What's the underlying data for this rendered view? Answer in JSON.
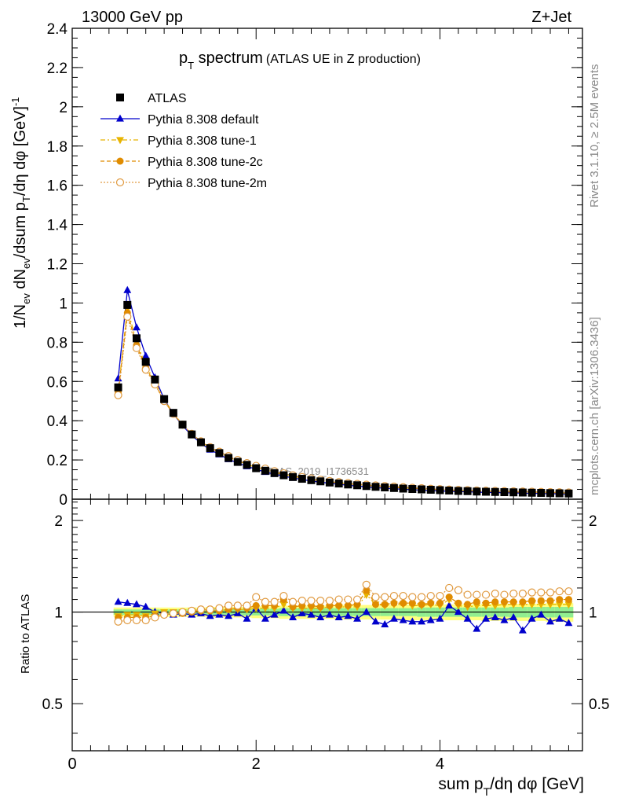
{
  "header": {
    "energy_label": "13000 GeV pp",
    "process_label": "Z+Jet"
  },
  "side_labels": {
    "rivet": "Rivet 3.1.10, ≥ 2.5M events",
    "mcplots": "mcplots.cern.ch [arXiv:1306.3436]"
  },
  "watermark": "ATLAS_2019_I1736531",
  "chart_data": [
    {
      "type": "line",
      "title_main": "p",
      "title_sub": "T",
      "title_rest": " spectrum",
      "title_note": "(ATLAS UE in Z production)",
      "ylabel": "1/N_ev dN_ev/dsum p_T/dη dφ [GeV]^-1",
      "xlim": [
        0,
        5.55
      ],
      "ylim": [
        0,
        2.4
      ],
      "y_ticks": [
        "0",
        "0.2",
        "0.4",
        "0.6",
        "0.8",
        "1",
        "1.2",
        "1.4",
        "1.6",
        "1.8",
        "2",
        "2.2",
        "2.4"
      ],
      "grid": false,
      "legend_position": "top-left",
      "x": [
        0.5,
        0.6,
        0.7,
        0.8,
        0.9,
        1.0,
        1.1,
        1.2,
        1.3,
        1.4,
        1.5,
        1.6,
        1.7,
        1.8,
        1.9,
        2.0,
        2.1,
        2.2,
        2.3,
        2.4,
        2.5,
        2.6,
        2.7,
        2.8,
        2.9,
        3.0,
        3.1,
        3.2,
        3.3,
        3.4,
        3.5,
        3.6,
        3.7,
        3.8,
        3.9,
        4.0,
        4.1,
        4.2,
        4.3,
        4.4,
        4.5,
        4.6,
        4.7,
        4.8,
        4.9,
        5.0,
        5.1,
        5.2,
        5.3,
        5.4
      ],
      "series": [
        {
          "name": "ATLAS",
          "color": "#000000",
          "marker": "square",
          "values": [
            0.57,
            0.99,
            0.82,
            0.7,
            0.61,
            0.51,
            0.44,
            0.38,
            0.33,
            0.29,
            0.26,
            0.235,
            0.21,
            0.19,
            0.175,
            0.158,
            0.145,
            0.133,
            0.122,
            0.113,
            0.104,
            0.097,
            0.091,
            0.085,
            0.08,
            0.075,
            0.071,
            0.067,
            0.063,
            0.06,
            0.057,
            0.054,
            0.052,
            0.05,
            0.048,
            0.046,
            0.044,
            0.042,
            0.041,
            0.039,
            0.038,
            0.037,
            0.036,
            0.035,
            0.034,
            0.033,
            0.032,
            0.031,
            0.03,
            0.029
          ]
        },
        {
          "name": "Pythia 8.308 default",
          "color": "#0000cc",
          "marker": "triangle-up",
          "values": [
            0.615,
            1.065,
            0.875,
            0.73,
            0.62,
            0.51,
            0.435,
            0.375,
            0.325,
            0.285,
            0.252,
            0.228,
            0.203,
            0.185,
            0.167,
            0.153,
            0.138,
            0.128,
            0.117,
            0.108,
            0.1,
            0.093,
            0.087,
            0.081,
            0.076,
            0.071,
            0.067,
            0.063,
            0.059,
            0.056,
            0.053,
            0.051,
            0.048,
            0.046,
            0.044,
            0.042,
            0.041,
            0.039,
            0.038,
            0.036,
            0.035,
            0.034,
            0.033,
            0.032,
            0.031,
            0.03,
            0.029,
            0.028,
            0.027,
            0.026
          ]
        },
        {
          "name": "Pythia 8.308 tune-1",
          "color": "#e8b400",
          "marker": "triangle-down",
          "values": [
            0.55,
            0.97,
            0.8,
            0.68,
            0.6,
            0.505,
            0.44,
            0.38,
            0.332,
            0.292,
            0.262,
            0.238,
            0.214,
            0.194,
            0.178,
            0.162,
            0.149,
            0.137,
            0.126,
            0.116,
            0.107,
            0.1,
            0.094,
            0.088,
            0.083,
            0.078,
            0.074,
            0.07,
            0.066,
            0.063,
            0.06,
            0.057,
            0.055,
            0.052,
            0.05,
            0.048,
            0.046,
            0.044,
            0.043,
            0.041,
            0.04,
            0.039,
            0.038,
            0.037,
            0.036,
            0.035,
            0.034,
            0.033,
            0.032,
            0.031
          ]
        },
        {
          "name": "Pythia 8.308 tune-2c",
          "color": "#e08c00",
          "marker": "circle",
          "values": [
            0.545,
            0.95,
            0.785,
            0.67,
            0.59,
            0.5,
            0.435,
            0.378,
            0.33,
            0.292,
            0.262,
            0.238,
            0.215,
            0.196,
            0.18,
            0.165,
            0.151,
            0.139,
            0.128,
            0.118,
            0.109,
            0.102,
            0.095,
            0.089,
            0.084,
            0.079,
            0.075,
            0.071,
            0.067,
            0.064,
            0.061,
            0.058,
            0.056,
            0.053,
            0.051,
            0.049,
            0.047,
            0.045,
            0.044,
            0.042,
            0.041,
            0.04,
            0.039,
            0.038,
            0.037,
            0.036,
            0.035,
            0.034,
            0.033,
            0.032
          ]
        },
        {
          "name": "Pythia 8.308 tune-2m",
          "color": "#e09a40",
          "marker": "circle-open",
          "values": [
            0.53,
            0.93,
            0.77,
            0.66,
            0.585,
            0.5,
            0.435,
            0.38,
            0.333,
            0.295,
            0.265,
            0.242,
            0.22,
            0.2,
            0.184,
            0.17,
            0.156,
            0.143,
            0.132,
            0.122,
            0.113,
            0.106,
            0.099,
            0.093,
            0.087,
            0.082,
            0.078,
            0.074,
            0.07,
            0.067,
            0.064,
            0.061,
            0.058,
            0.056,
            0.053,
            0.051,
            0.049,
            0.047,
            0.046,
            0.044,
            0.043,
            0.042,
            0.041,
            0.04,
            0.039,
            0.038,
            0.037,
            0.036,
            0.035,
            0.034
          ]
        }
      ]
    },
    {
      "type": "line",
      "ylabel": "Ratio to ATLAS",
      "xlabel_main": "sum p",
      "xlabel_sub": "T",
      "xlabel_rest": "/dη dφ [GeV]",
      "xlim": [
        0,
        5.55
      ],
      "ylim": [
        0.35,
        2.35
      ],
      "y_scale": "log",
      "x_ticks": [
        "0",
        "2",
        "4"
      ],
      "y_ticks": [
        "0.5",
        "1",
        "2"
      ],
      "grid": false,
      "x": [
        0.5,
        0.6,
        0.7,
        0.8,
        0.9,
        1.0,
        1.1,
        1.2,
        1.3,
        1.4,
        1.5,
        1.6,
        1.7,
        1.8,
        1.9,
        2.0,
        2.1,
        2.2,
        2.3,
        2.4,
        2.5,
        2.6,
        2.7,
        2.8,
        2.9,
        3.0,
        3.1,
        3.2,
        3.3,
        3.4,
        3.5,
        3.6,
        3.7,
        3.8,
        3.9,
        4.0,
        4.1,
        4.2,
        4.3,
        4.4,
        4.5,
        4.6,
        4.7,
        4.8,
        4.9,
        5.0,
        5.1,
        5.2,
        5.3,
        5.4
      ],
      "band_inner_color": "#90ee90",
      "band_outer_color": "#ffff80",
      "band_inner": [
        0.02,
        0.02,
        0.02,
        0.02,
        0.02,
        0.02,
        0.02,
        0.02,
        0.02,
        0.02,
        0.02,
        0.02,
        0.02,
        0.025,
        0.025,
        0.025,
        0.025,
        0.025,
        0.03,
        0.03,
        0.03,
        0.03,
        0.03,
        0.03,
        0.03,
        0.03,
        0.03,
        0.03,
        0.03,
        0.03,
        0.03,
        0.03,
        0.03,
        0.035,
        0.035,
        0.035,
        0.035,
        0.035,
        0.035,
        0.035,
        0.035,
        0.035,
        0.035,
        0.04,
        0.04,
        0.04,
        0.04,
        0.04,
        0.04,
        0.04
      ],
      "band_outer": [
        0.035,
        0.035,
        0.035,
        0.035,
        0.035,
        0.035,
        0.035,
        0.035,
        0.035,
        0.035,
        0.04,
        0.04,
        0.04,
        0.04,
        0.04,
        0.045,
        0.045,
        0.045,
        0.05,
        0.05,
        0.05,
        0.05,
        0.05,
        0.05,
        0.055,
        0.055,
        0.055,
        0.055,
        0.055,
        0.055,
        0.055,
        0.06,
        0.06,
        0.06,
        0.06,
        0.06,
        0.06,
        0.06,
        0.06,
        0.06,
        0.065,
        0.065,
        0.065,
        0.065,
        0.065,
        0.065,
        0.065,
        0.07,
        0.07,
        0.07
      ],
      "series": [
        {
          "name": "Pythia 8.308 default",
          "color": "#0000cc",
          "marker": "triangle-up",
          "values": [
            1.08,
            1.07,
            1.06,
            1.04,
            1.0,
            0.99,
            0.98,
            0.99,
            0.98,
            0.99,
            0.97,
            0.98,
            0.97,
            0.99,
            0.95,
            1.03,
            0.95,
            0.98,
            1.01,
            0.96,
            0.99,
            0.98,
            0.96,
            0.98,
            0.96,
            0.97,
            0.95,
            1.0,
            0.93,
            0.91,
            0.95,
            0.94,
            0.93,
            0.93,
            0.94,
            0.95,
            1.05,
            1.0,
            0.95,
            0.88,
            0.95,
            0.96,
            0.94,
            0.96,
            0.87,
            0.95,
            0.98,
            0.93,
            0.95,
            0.92
          ]
        },
        {
          "name": "Pythia 8.308 tune-1",
          "color": "#e8b400",
          "marker": "triangle-down",
          "values": [
            0.97,
            0.98,
            0.98,
            0.97,
            0.99,
            1.0,
            1.0,
            1.0,
            1.01,
            1.01,
            1.01,
            1.01,
            1.02,
            1.02,
            1.02,
            1.03,
            1.03,
            1.03,
            1.06,
            1.03,
            1.03,
            1.03,
            1.03,
            1.04,
            1.04,
            1.04,
            1.04,
            1.14,
            1.06,
            1.05,
            1.06,
            1.06,
            1.05,
            1.05,
            1.06,
            1.05,
            1.1,
            1.05,
            1.04,
            1.05,
            1.05,
            1.05,
            1.06,
            1.06,
            1.06,
            1.06,
            1.06,
            1.06,
            1.06,
            1.06
          ]
        },
        {
          "name": "Pythia 8.308 tune-2c",
          "color": "#e08c00",
          "marker": "circle",
          "values": [
            0.96,
            0.96,
            0.96,
            0.96,
            0.97,
            0.98,
            0.99,
            0.99,
            1.0,
            1.01,
            1.01,
            1.01,
            1.02,
            1.03,
            1.03,
            1.05,
            1.05,
            1.05,
            1.1,
            1.04,
            1.05,
            1.05,
            1.04,
            1.05,
            1.05,
            1.05,
            1.06,
            1.18,
            1.06,
            1.06,
            1.07,
            1.07,
            1.07,
            1.06,
            1.07,
            1.07,
            1.12,
            1.07,
            1.06,
            1.08,
            1.07,
            1.08,
            1.08,
            1.08,
            1.08,
            1.09,
            1.09,
            1.09,
            1.1,
            1.1
          ]
        },
        {
          "name": "Pythia 8.308 tune-2m",
          "color": "#e09a40",
          "marker": "circle-open",
          "values": [
            0.93,
            0.94,
            0.94,
            0.94,
            0.96,
            0.98,
            0.99,
            1.0,
            1.01,
            1.02,
            1.02,
            1.03,
            1.05,
            1.05,
            1.05,
            1.12,
            1.08,
            1.08,
            1.13,
            1.08,
            1.09,
            1.09,
            1.09,
            1.09,
            1.1,
            1.1,
            1.1,
            1.23,
            1.12,
            1.12,
            1.13,
            1.13,
            1.12,
            1.12,
            1.13,
            1.13,
            1.2,
            1.18,
            1.14,
            1.14,
            1.14,
            1.15,
            1.14,
            1.15,
            1.15,
            1.16,
            1.16,
            1.16,
            1.17,
            1.17
          ]
        }
      ]
    }
  ]
}
